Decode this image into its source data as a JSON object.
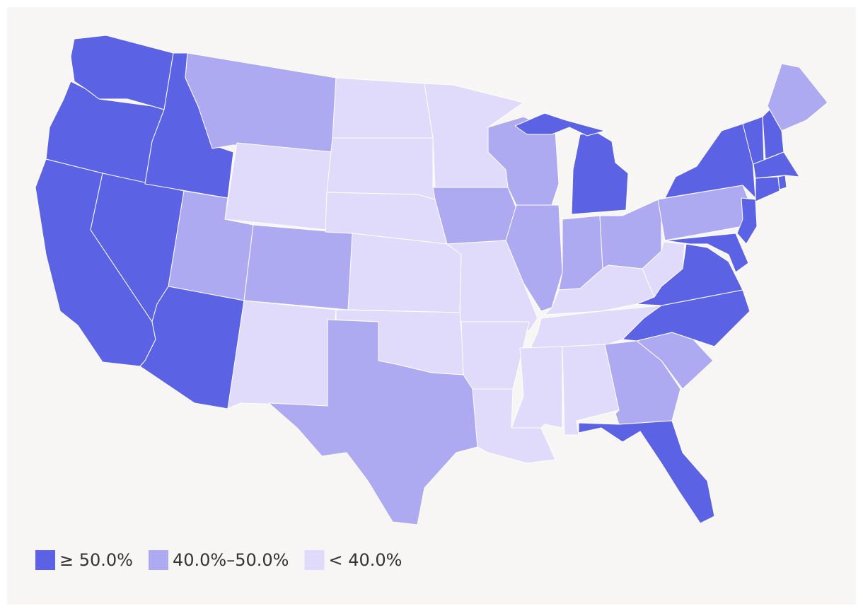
{
  "legend": [
    {
      "label": "≥ 50.0%",
      "color": "#5c62e4"
    },
    {
      "label": "40.0%–50.0%",
      "color": "#aeaaf2"
    },
    {
      "label": "< 40.0%",
      "color": "#e0dafb"
    }
  ]
}
